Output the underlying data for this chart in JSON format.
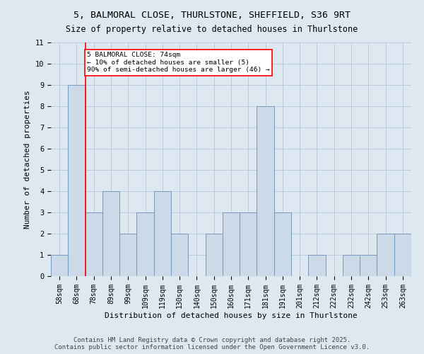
{
  "title_line1": "5, BALMORAL CLOSE, THURLSTONE, SHEFFIELD, S36 9RT",
  "title_line2": "Size of property relative to detached houses in Thurlstone",
  "xlabel": "Distribution of detached houses by size in Thurlstone",
  "ylabel": "Number of detached properties",
  "categories": [
    "58sqm",
    "68sqm",
    "78sqm",
    "89sqm",
    "99sqm",
    "109sqm",
    "119sqm",
    "130sqm",
    "140sqm",
    "150sqm",
    "160sqm",
    "171sqm",
    "181sqm",
    "191sqm",
    "201sqm",
    "212sqm",
    "222sqm",
    "232sqm",
    "242sqm",
    "253sqm",
    "263sqm"
  ],
  "values": [
    1,
    9,
    3,
    4,
    2,
    3,
    4,
    2,
    0,
    2,
    3,
    3,
    8,
    3,
    0,
    1,
    0,
    1,
    1,
    2,
    2
  ],
  "bar_color": "#ccd9e8",
  "bar_edge_color": "#7799bb",
  "annotation_text": "5 BALMORAL CLOSE: 74sqm\n← 10% of detached houses are smaller (5)\n90% of semi-detached houses are larger (46) →",
  "annotation_box_color": "white",
  "annotation_box_edge_color": "red",
  "vline_color": "red",
  "ylim": [
    0,
    11
  ],
  "yticks": [
    0,
    1,
    2,
    3,
    4,
    5,
    6,
    7,
    8,
    9,
    10,
    11
  ],
  "grid_color": "#bbccdd",
  "bg_color": "#dde8f0",
  "footer_line1": "Contains HM Land Registry data © Crown copyright and database right 2025.",
  "footer_line2": "Contains public sector information licensed under the Open Government Licence v3.0.",
  "title_fontsize": 9.5,
  "subtitle_fontsize": 8.5,
  "tick_fontsize": 7,
  "label_fontsize": 8,
  "footer_fontsize": 6.5
}
